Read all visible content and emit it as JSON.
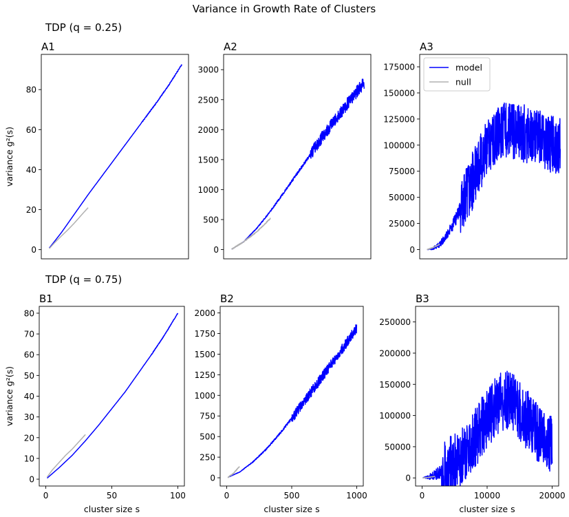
{
  "figure": {
    "suptitle": "Variance in Growth Rate of Clusters",
    "row_titles": [
      "TDP (q = 0.25)",
      "TDP (q = 0.75)"
    ],
    "ylabel": "variance g²(s)",
    "xlabel": "cluster size s"
  },
  "colors": {
    "model": "#0000ff",
    "null": "#b0b0b0",
    "axes": "#000000"
  },
  "chart_data": [
    {
      "id": "A1",
      "title": "A1",
      "type": "line",
      "xlim": [
        -5,
        105
      ],
      "ylim": [
        -4.6,
        97.6
      ],
      "xticks": [],
      "xtick_labels": [],
      "yticks": [
        0,
        20,
        40,
        60,
        80
      ],
      "ytick_labels": [
        "0",
        "20",
        "40",
        "60",
        "80"
      ],
      "ylabel": "variance g²(s)",
      "xlabel": "",
      "series": [
        {
          "name": "model",
          "color": "#0000ff",
          "noise": 0.25,
          "noise_start": 70,
          "x": [
            1,
            10,
            20,
            30,
            40,
            50,
            60,
            70,
            80,
            90,
            100
          ],
          "y": [
            0.8,
            8.5,
            18,
            27.5,
            36.5,
            45.5,
            54.5,
            63.5,
            72.5,
            82,
            92.5
          ]
        },
        {
          "name": "null",
          "color": "#b0b0b0",
          "noise": 0,
          "x": [
            1,
            5,
            10,
            15,
            20,
            25,
            30
          ],
          "y": [
            0.5,
            3.5,
            6.8,
            10,
            13.5,
            17.3,
            21
          ]
        }
      ]
    },
    {
      "id": "A2",
      "title": "A2",
      "type": "line",
      "xlim": [
        -50,
        1050
      ],
      "ylim": [
        -155,
        3255
      ],
      "xticks": [],
      "xtick_labels": [],
      "yticks": [
        0,
        500,
        1000,
        1500,
        2000,
        2500,
        3000
      ],
      "ytick_labels": [
        "0",
        "500",
        "1000",
        "1500",
        "2000",
        "2500",
        "3000"
      ],
      "ylabel": "",
      "xlabel": "",
      "series": [
        {
          "name": "model",
          "color": "#0000ff",
          "noise": 100,
          "noise_start": 600,
          "x": [
            10,
            100,
            200,
            300,
            400,
            500,
            600,
            700,
            800,
            900,
            1000
          ],
          "y": [
            5,
            130,
            360,
            640,
            950,
            1270,
            1590,
            1920,
            2210,
            2510,
            2780
          ]
        },
        {
          "name": "null",
          "color": "#b0b0b0",
          "noise": 8,
          "x": [
            10,
            100,
            200,
            300
          ],
          "y": [
            5,
            130,
            300,
            520
          ]
        }
      ]
    },
    {
      "id": "A3",
      "title": "A3",
      "type": "line",
      "xlim": [
        -1000,
        21000
      ],
      "ylim": [
        -8900,
        186900
      ],
      "xticks": [],
      "xtick_labels": [],
      "yticks": [
        0,
        25000,
        50000,
        75000,
        100000,
        125000,
        150000,
        175000
      ],
      "ytick_labels": [
        "0",
        "25000",
        "50000",
        "75000",
        "100000",
        "125000",
        "150000",
        "175000"
      ],
      "ylabel": "",
      "xlabel": "",
      "legend": {
        "position": "upper-left",
        "entries": [
          "model",
          "null"
        ]
      },
      "series": [
        {
          "name": "model",
          "color": "#0000ff",
          "noise": 28000,
          "noise_start": 5000,
          "x": [
            100,
            1000,
            2000,
            3000,
            4000,
            5000,
            6000,
            7000,
            8000,
            9000,
            10000,
            11000,
            12000,
            13000,
            14000,
            15000,
            16000,
            17000,
            18000,
            19000,
            20000
          ],
          "y": [
            0,
            1000,
            5000,
            13000,
            24000,
            38000,
            52000,
            67000,
            82000,
            95000,
            105000,
            112000,
            115000,
            114000,
            112000,
            110000,
            108000,
            105000,
            103000,
            100000,
            98000
          ]
        },
        {
          "name": "null",
          "color": "#b0b0b0",
          "noise": 300,
          "x": [
            100,
            500,
            1000,
            2000
          ],
          "y": [
            0,
            800,
            2000,
            5000
          ]
        }
      ]
    },
    {
      "id": "B1",
      "title": "B1",
      "type": "line",
      "xlim": [
        -5,
        105
      ],
      "ylim": [
        -3.3,
        83.3
      ],
      "xticks": [
        0,
        50,
        100
      ],
      "xtick_labels": [
        "0",
        "50",
        "100"
      ],
      "yticks": [
        0,
        10,
        20,
        30,
        40,
        50,
        60,
        70,
        80
      ],
      "ytick_labels": [
        "0",
        "10",
        "20",
        "30",
        "40",
        "50",
        "60",
        "70",
        "80"
      ],
      "ylabel": "variance g²(s)",
      "xlabel": "cluster size s",
      "series": [
        {
          "name": "model",
          "color": "#0000ff",
          "noise": 0.2,
          "noise_start": 80,
          "x": [
            1,
            10,
            20,
            30,
            40,
            50,
            60,
            70,
            80,
            90,
            100
          ],
          "y": [
            0.5,
            5.5,
            11.5,
            18.5,
            26,
            34,
            42,
            51,
            60,
            69.5,
            80
          ]
        },
        {
          "name": "null",
          "color": "#b0b0b0",
          "noise": 0,
          "x": [
            1,
            5,
            10,
            15,
            20,
            25,
            30
          ],
          "y": [
            1,
            4.5,
            8,
            11.5,
            14.5,
            18,
            21.5
          ]
        }
      ]
    },
    {
      "id": "B2",
      "title": "B2",
      "type": "line",
      "xlim": [
        -50,
        1050
      ],
      "ylim": [
        -100,
        2080
      ],
      "xticks": [
        0,
        500,
        1000
      ],
      "xtick_labels": [
        "0",
        "500",
        "1000"
      ],
      "yticks": [
        0,
        250,
        500,
        750,
        1000,
        1250,
        1500,
        1750,
        2000
      ],
      "ytick_labels": [
        "0",
        "250",
        "500",
        "750",
        "1000",
        "1250",
        "1500",
        "1750",
        "2000"
      ],
      "ylabel": "",
      "xlabel": "cluster size s",
      "series": [
        {
          "name": "model",
          "color": "#0000ff",
          "noise": 60,
          "noise_start": 500,
          "x": [
            10,
            100,
            200,
            300,
            400,
            500,
            600,
            700,
            800,
            900,
            1000
          ],
          "y": [
            5,
            70,
            190,
            340,
            520,
            720,
            930,
            1150,
            1370,
            1590,
            1820
          ]
        },
        {
          "name": "null",
          "color": "#b0b0b0",
          "noise": 5,
          "x": [
            10,
            50,
            100
          ],
          "y": [
            5,
            50,
            140
          ]
        }
      ]
    },
    {
      "id": "B3",
      "title": "B3",
      "type": "line",
      "xlim": [
        -1000,
        21000
      ],
      "ylim": [
        -13000,
        275000
      ],
      "xticks": [
        0,
        10000,
        20000
      ],
      "xtick_labels": [
        "0",
        "10000",
        "20000"
      ],
      "yticks": [
        0,
        50000,
        100000,
        150000,
        200000,
        250000
      ],
      "ytick_labels": [
        "0",
        "50000",
        "100000",
        "150000",
        "200000",
        "250000"
      ],
      "ylabel": "",
      "xlabel": "cluster size s",
      "series": [
        {
          "name": "model",
          "color": "#0000ff",
          "noise": 48000,
          "noise_start": 3000,
          "x": [
            100,
            1000,
            2000,
            3000,
            4000,
            5000,
            6000,
            7000,
            8000,
            9000,
            10000,
            11000,
            12000,
            13000,
            14000,
            15000,
            16000,
            17000,
            18000,
            19000,
            20000
          ],
          "y": [
            0,
            1500,
            5000,
            10000,
            17000,
            25000,
            35000,
            48000,
            62000,
            78000,
            95000,
            110000,
            122000,
            127000,
            120000,
            108000,
            95000,
            82000,
            70000,
            58000,
            50000
          ]
        },
        {
          "name": "null",
          "color": "#b0b0b0",
          "noise": 300,
          "x": [
            100,
            1000,
            2000
          ],
          "y": [
            0,
            800,
            2500
          ]
        }
      ]
    }
  ]
}
